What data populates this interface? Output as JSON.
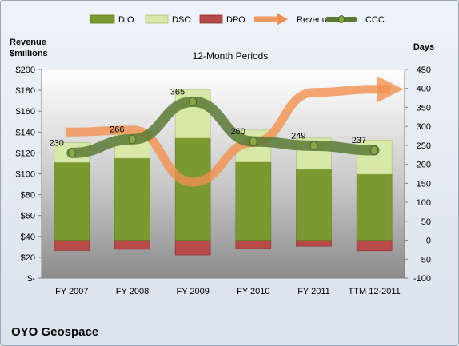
{
  "chart_data": {
    "type": "bar",
    "title": "12-Month Periods",
    "company": "OYO Geospace",
    "left_axis_label": [
      "Revenue",
      "$millions"
    ],
    "right_axis_label": "Days",
    "categories": [
      "FY 2007",
      "FY 2008",
      "FY 2009",
      "FY 2010",
      "FY 2011",
      "TTM 12-2011"
    ],
    "left_axis": {
      "ylim": [
        0,
        200
      ],
      "ticks": [
        "$-",
        "$20",
        "$40",
        "$60",
        "$80",
        "$100",
        "$120",
        "$140",
        "$160",
        "$180",
        "$200"
      ]
    },
    "right_axis": {
      "ylim": [
        -100,
        450
      ],
      "ticks": [
        "-100",
        "-50",
        "0",
        "50",
        "100",
        "150",
        "200",
        "250",
        "300",
        "350",
        "400",
        "450"
      ]
    },
    "legend": [
      "DIO",
      "DSO",
      "DPO",
      "Revenue",
      "CCC"
    ],
    "legend_position": "top",
    "grid": false,
    "series": [
      {
        "name": "DIO",
        "axis": "right",
        "stacked": true,
        "color": "#7a9a30",
        "values": [
          205,
          216,
          269,
          206,
          187,
          174
        ]
      },
      {
        "name": "DSO",
        "axis": "right",
        "stacked": true,
        "color": "#d8e8a8",
        "values": [
          52,
          73,
          127,
          84,
          82,
          90
        ]
      },
      {
        "name": "DPO",
        "axis": "right",
        "stacked": true,
        "color": "#b84a4a",
        "values": [
          -27,
          -24,
          -39,
          -22,
          -16,
          -28
        ]
      },
      {
        "name": "Revenue",
        "axis": "left",
        "type": "line",
        "color": "#f19050",
        "values": [
          140,
          142,
          92,
          130,
          178,
          181
        ]
      },
      {
        "name": "CCC",
        "axis": "right",
        "type": "line",
        "color": "#5a7a36",
        "values": [
          230,
          266,
          365,
          260,
          249,
          237
        ]
      }
    ],
    "ccc_labels": [
      "230",
      "266",
      "365",
      "260",
      "249",
      "237"
    ]
  }
}
